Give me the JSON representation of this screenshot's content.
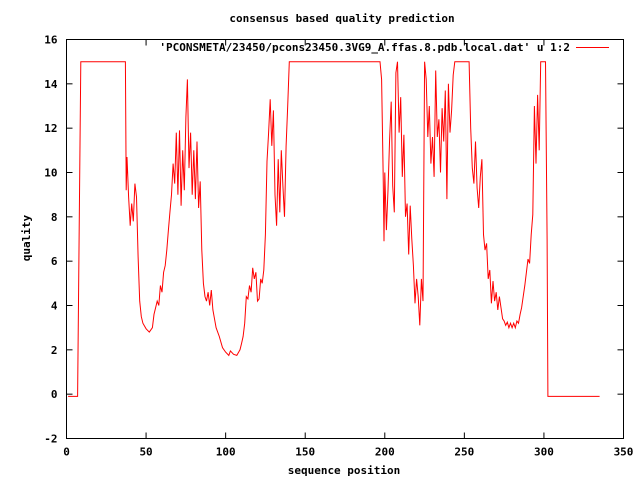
{
  "chart_data": {
    "type": "line",
    "title": "consensus based quality prediction",
    "xlabel": "sequence position",
    "ylabel": "quality",
    "xlim": [
      0,
      350
    ],
    "ylim": [
      -2,
      16
    ],
    "xticks": [
      0,
      50,
      100,
      150,
      200,
      250,
      300,
      350
    ],
    "yticks": [
      -2,
      0,
      2,
      4,
      6,
      8,
      10,
      12,
      14,
      16
    ],
    "grid": false,
    "legend_position": "top-right",
    "series": [
      {
        "name": "'PCONSMETA/23450/pcons23450.3VG9_A.ffas.8.pdb.local.dat' u 1:2",
        "color": "#ff0000",
        "points": [
          [
            1,
            -0.1
          ],
          [
            7,
            -0.1
          ],
          [
            8,
            7.5
          ],
          [
            9,
            15
          ],
          [
            37,
            15
          ],
          [
            37.5,
            9.2
          ],
          [
            38,
            10.7
          ],
          [
            39,
            8.9
          ],
          [
            40,
            7.6
          ],
          [
            41,
            8.6
          ],
          [
            42,
            7.8
          ],
          [
            43,
            9.5
          ],
          [
            44,
            8.9
          ],
          [
            45,
            6.2
          ],
          [
            46,
            4.2
          ],
          [
            47,
            3.5
          ],
          [
            48,
            3.2
          ],
          [
            50,
            2.95
          ],
          [
            52,
            2.8
          ],
          [
            54,
            3.0
          ],
          [
            55,
            3.6
          ],
          [
            56,
            3.9
          ],
          [
            57,
            4.2
          ],
          [
            58,
            4.0
          ],
          [
            59,
            4.9
          ],
          [
            60,
            4.6
          ],
          [
            61,
            5.5
          ],
          [
            62,
            5.8
          ],
          [
            63,
            6.5
          ],
          [
            64,
            7.4
          ],
          [
            65,
            8.2
          ],
          [
            66,
            9.0
          ],
          [
            67,
            10.4
          ],
          [
            68,
            9.5
          ],
          [
            69,
            11.8
          ],
          [
            70,
            9.0
          ],
          [
            71,
            11.9
          ],
          [
            72,
            8.5
          ],
          [
            73,
            11.0
          ],
          [
            74,
            9.2
          ],
          [
            75,
            12.5
          ],
          [
            76,
            14.2
          ],
          [
            77,
            10.2
          ],
          [
            78,
            11.8
          ],
          [
            79,
            9.0
          ],
          [
            80,
            11.0
          ],
          [
            81,
            8.8
          ],
          [
            82,
            11.4
          ],
          [
            83,
            8.4
          ],
          [
            84,
            9.6
          ],
          [
            85,
            6.5
          ],
          [
            86,
            5.0
          ],
          [
            87,
            4.4
          ],
          [
            88,
            4.2
          ],
          [
            89,
            4.6
          ],
          [
            90,
            4.0
          ],
          [
            91,
            4.7
          ],
          [
            92,
            3.8
          ],
          [
            93,
            3.4
          ],
          [
            94,
            3.0
          ],
          [
            96,
            2.6
          ],
          [
            98,
            2.1
          ],
          [
            100,
            1.9
          ],
          [
            102,
            1.75
          ],
          [
            103,
            1.95
          ],
          [
            105,
            1.8
          ],
          [
            107,
            1.75
          ],
          [
            109,
            2.0
          ],
          [
            110,
            2.3
          ],
          [
            111,
            2.6
          ],
          [
            112,
            3.2
          ],
          [
            113,
            4.4
          ],
          [
            114,
            4.3
          ],
          [
            115,
            4.9
          ],
          [
            116,
            4.6
          ],
          [
            117,
            5.7
          ],
          [
            118,
            5.2
          ],
          [
            119,
            5.5
          ],
          [
            120,
            4.2
          ],
          [
            121,
            4.3
          ],
          [
            122,
            5.2
          ],
          [
            123,
            5.0
          ],
          [
            124,
            5.6
          ],
          [
            125,
            7.2
          ],
          [
            126,
            10.5
          ],
          [
            127,
            11.8
          ],
          [
            128,
            13.3
          ],
          [
            129,
            11.2
          ],
          [
            130,
            12.8
          ],
          [
            131,
            9.0
          ],
          [
            132,
            7.6
          ],
          [
            133,
            10.6
          ],
          [
            134,
            8.2
          ],
          [
            135,
            11.0
          ],
          [
            136,
            9.4
          ],
          [
            137,
            8.0
          ],
          [
            138,
            11.2
          ],
          [
            139,
            13.0
          ],
          [
            140,
            15
          ],
          [
            197,
            15
          ],
          [
            198,
            14.2
          ],
          [
            199,
            9.8
          ],
          [
            199.5,
            6.9
          ],
          [
            200,
            10.0
          ],
          [
            201,
            7.4
          ],
          [
            202,
            9.2
          ],
          [
            203,
            11.5
          ],
          [
            204,
            13.2
          ],
          [
            205,
            9.4
          ],
          [
            206,
            8.2
          ],
          [
            207,
            14.5
          ],
          [
            208,
            15
          ],
          [
            209,
            11.8
          ],
          [
            210,
            13.4
          ],
          [
            211,
            9.8
          ],
          [
            212,
            11.7
          ],
          [
            213,
            8.0
          ],
          [
            214,
            8.6
          ],
          [
            215,
            6.3
          ],
          [
            216,
            8.5
          ],
          [
            217,
            7.0
          ],
          [
            218,
            5.8
          ],
          [
            219,
            4.1
          ],
          [
            220,
            5.2
          ],
          [
            221,
            4.4
          ],
          [
            222,
            3.1
          ],
          [
            223,
            5.2
          ],
          [
            224,
            4.2
          ],
          [
            225,
            15
          ],
          [
            226,
            14.2
          ],
          [
            227,
            11.6
          ],
          [
            228,
            13.0
          ],
          [
            229,
            10.4
          ],
          [
            230,
            11.6
          ],
          [
            231,
            9.8
          ],
          [
            232,
            14.6
          ],
          [
            233,
            11.6
          ],
          [
            234,
            12.4
          ],
          [
            235,
            10.0
          ],
          [
            236,
            12.9
          ],
          [
            237,
            11.4
          ],
          [
            238,
            13.7
          ],
          [
            239,
            8.8
          ],
          [
            240,
            14.0
          ],
          [
            241,
            11.8
          ],
          [
            242,
            12.8
          ],
          [
            243,
            14.4
          ],
          [
            244,
            15
          ],
          [
            253,
            15
          ],
          [
            254,
            12.0
          ],
          [
            255,
            10.2
          ],
          [
            256,
            9.5
          ],
          [
            257,
            11.4
          ],
          [
            258,
            9.3
          ],
          [
            259,
            8.4
          ],
          [
            260,
            9.8
          ],
          [
            261,
            10.6
          ],
          [
            262,
            7.2
          ],
          [
            263,
            6.5
          ],
          [
            264,
            6.8
          ],
          [
            265,
            5.2
          ],
          [
            266,
            5.6
          ],
          [
            267,
            4.1
          ],
          [
            268,
            5.1
          ],
          [
            269,
            4.2
          ],
          [
            270,
            4.6
          ],
          [
            271,
            3.8
          ],
          [
            272,
            4.4
          ],
          [
            273,
            3.9
          ],
          [
            274,
            3.4
          ],
          [
            275,
            3.3
          ],
          [
            276,
            3.1
          ],
          [
            277,
            3.25
          ],
          [
            278,
            3.0
          ],
          [
            279,
            3.2
          ],
          [
            280,
            3.0
          ],
          [
            281,
            3.2
          ],
          [
            282,
            3.0
          ],
          [
            283,
            3.3
          ],
          [
            284,
            3.2
          ],
          [
            285,
            3.6
          ],
          [
            286,
            3.9
          ],
          [
            287,
            4.4
          ],
          [
            288,
            4.9
          ],
          [
            289,
            5.5
          ],
          [
            290,
            6.1
          ],
          [
            291,
            5.9
          ],
          [
            292,
            7.2
          ],
          [
            293,
            8.1
          ],
          [
            294,
            13.0
          ],
          [
            295,
            10.4
          ],
          [
            296,
            13.5
          ],
          [
            297,
            11.0
          ],
          [
            298,
            15
          ],
          [
            301,
            15
          ],
          [
            302,
            7.0
          ],
          [
            302.5,
            -0.1
          ],
          [
            335,
            -0.1
          ]
        ]
      }
    ]
  }
}
